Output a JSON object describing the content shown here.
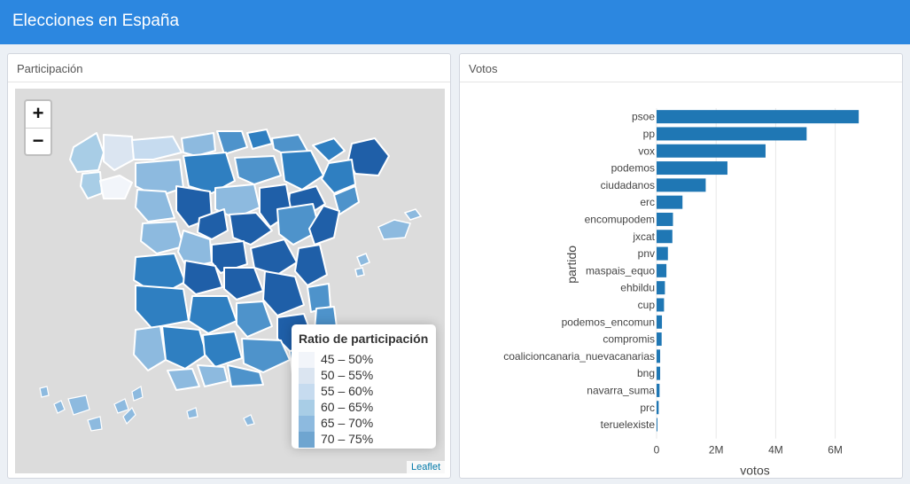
{
  "header": {
    "title": "Elecciones en España"
  },
  "left_panel": {
    "title": "Participación",
    "zoom": {
      "in_label": "+",
      "out_label": "−"
    },
    "legend": {
      "title": "Ratio de participación",
      "items": [
        {
          "label": "45 – 50%",
          "color": "#f2f5fa"
        },
        {
          "label": "50 – 55%",
          "color": "#dbe5f1"
        },
        {
          "label": "55 – 60%",
          "color": "#c6dbef"
        },
        {
          "label": "60 – 65%",
          "color": "#a8cde6"
        },
        {
          "label": "65 – 70%",
          "color": "#8dbadf"
        },
        {
          "label": "70 – 75%",
          "color": "#6fa5d0"
        }
      ]
    },
    "attribution": "Leaflet"
  },
  "right_panel": {
    "title": "Votos"
  },
  "chart_data": {
    "type": "bar",
    "orientation": "horizontal",
    "xlabel": "votos",
    "ylabel": "partido",
    "xlim": [
      0,
      7500000
    ],
    "xticks": [
      0,
      2000000,
      4000000,
      6000000
    ],
    "xtick_labels": [
      "0",
      "2M",
      "4M",
      "6M"
    ],
    "bar_color": "#1f77b4",
    "grid": true,
    "categories": [
      "psoe",
      "pp",
      "vox",
      "podemos",
      "ciudadanos",
      "erc",
      "encomupodem",
      "jxcat",
      "pnv",
      "maspais_equo",
      "ehbildu",
      "cup",
      "podemos_encomun",
      "compromis",
      "coalicioncanaria_nuevacanarias",
      "bng",
      "navarra_suma",
      "prc",
      "teruelexiste"
    ],
    "values": [
      6790000,
      5040000,
      3660000,
      2380000,
      1650000,
      870000,
      550000,
      530000,
      380000,
      330000,
      280000,
      250000,
      180000,
      170000,
      120000,
      120000,
      100000,
      70000,
      20000
    ]
  }
}
